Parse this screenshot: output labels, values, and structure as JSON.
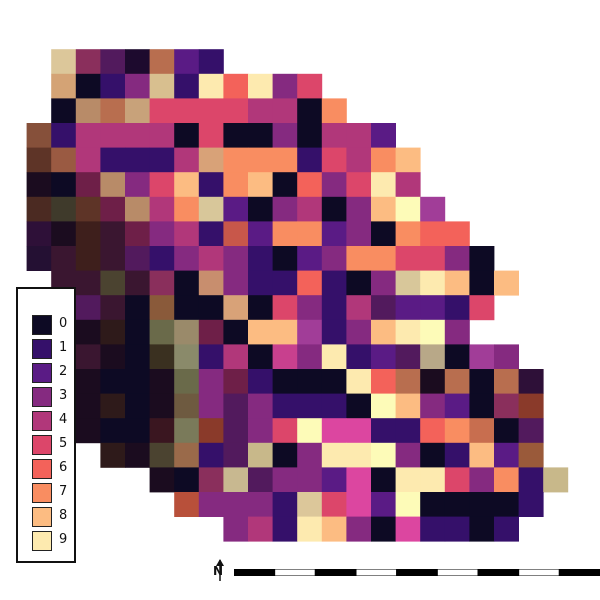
{
  "legend": {
    "classes": [
      {
        "value": "0",
        "color": "#0d0a24"
      },
      {
        "value": "1",
        "color": "#35106a"
      },
      {
        "value": "2",
        "color": "#5a1b85"
      },
      {
        "value": "3",
        "color": "#852a80"
      },
      {
        "value": "4",
        "color": "#b1377a"
      },
      {
        "value": "5",
        "color": "#dc466a"
      },
      {
        "value": "6",
        "color": "#f3625a"
      },
      {
        "value": "7",
        "color": "#f98d61"
      },
      {
        "value": "8",
        "color": "#fcbc82"
      },
      {
        "value": "9",
        "color": "#fdeaaf"
      }
    ]
  },
  "north_arrow": {
    "label": "N"
  },
  "raster": {
    "rows": [
      [
        0,
        0,
        0,
        0,
        0,
        0,
        0,
        0,
        0,
        0,
        0,
        0,
        0,
        0,
        0,
        0,
        0,
        0,
        0,
        0,
        0,
        0,
        0,
        0
      ],
      [
        0,
        0,
        0,
        0,
        0,
        0,
        0,
        0,
        0,
        0,
        0,
        0,
        0,
        0,
        0,
        0,
        0,
        0,
        0,
        0,
        0,
        0,
        0,
        0
      ],
      [
        0,
        0,
        "#dcc79a",
        "#8a2f5c",
        "#521a5d",
        "#1d0a2e",
        "#b86e4f",
        "#5a1b85",
        "#35106a",
        0,
        0,
        0,
        0,
        0,
        0,
        0,
        0,
        0,
        0,
        0,
        0,
        0,
        0,
        0
      ],
      [
        0,
        0,
        "#d4a375",
        "#0d0a24",
        "#35106a",
        "#852a80",
        "#d8bf8f",
        "#35106a",
        "#fdeaaf",
        "#f3625a",
        "#fdeaaf",
        "#852a80",
        "#dc466a",
        0,
        0,
        0,
        0,
        0,
        0,
        0,
        0,
        0,
        0,
        0
      ],
      [
        0,
        0,
        "#0d0a24",
        "#b88b68",
        "#b86e4f",
        "#c8a27a",
        "#dc466a",
        "#dc466a",
        "#dc466a",
        "#dc466a",
        "#b1377a",
        "#b1377a",
        "#0d0a24",
        "#f98d61",
        0,
        0,
        0,
        0,
        0,
        0,
        0,
        0,
        0,
        0
      ],
      [
        0,
        "#86503a",
        "#35106a",
        "#b1377a",
        "#b1377a",
        "#b1377a",
        "#b1377a",
        "#0d0a24",
        "#dc466a",
        "#0d0a24",
        "#0d0a24",
        "#852a80",
        "#0d0a24",
        "#b1377a",
        "#b1377a",
        "#5a1b85",
        0,
        0,
        0,
        0,
        0,
        0,
        0,
        0
      ],
      [
        0,
        "#5e3427",
        "#9a5a42",
        "#b1377a",
        "#35106a",
        "#35106a",
        "#35106a",
        "#b1377a",
        "#d8a278",
        "#f98d61",
        "#f98d61",
        "#f98d61",
        "#35106a",
        "#dc466a",
        "#b1377a",
        "#f98d61",
        "#fcbc82",
        0,
        0,
        0,
        0,
        0,
        0,
        0
      ],
      [
        0,
        "#1b0c1f",
        "#0d0a24",
        "#6e1f48",
        "#b88b68",
        "#852a80",
        "#dc466a",
        "#fcbc82",
        "#35106a",
        "#f98d61",
        "#fcbc82",
        "#0d0a24",
        "#f3625a",
        "#852a80",
        "#dc466a",
        "#fdeaaf",
        "#b1377a",
        0,
        0,
        0,
        0,
        0,
        0,
        0
      ],
      [
        0,
        "#4b2a22",
        "#3f3a2b",
        "#5e3427",
        "#6e1f48",
        "#b88b68",
        "#b1377a",
        "#f98d61",
        "#d8c79a",
        "#5a1b85",
        "#0d0a24",
        "#852a80",
        "#b1377a",
        "#0d0a24",
        "#852a80",
        "#fcbc82",
        "#fdfbb8",
        "#a13d98",
        0,
        0,
        0,
        0,
        0,
        0
      ],
      [
        0,
        "#2e1038",
        "#1b0c1f",
        "#3e1f1c",
        "#3a1630",
        "#6e1f48",
        "#852a80",
        "#b1377a",
        "#35106a",
        "#c8574a",
        "#5a1b85",
        "#f98d61",
        "#f98d61",
        "#5a1b85",
        "#852a80",
        "#0d0a24",
        "#f98d61",
        "#f3625a",
        "#f3625a",
        0,
        0,
        0,
        0,
        0
      ],
      [
        0,
        "#241033",
        "#3a1630",
        "#3e1f1c",
        "#3a1630",
        "#521a5d",
        "#35106a",
        "#852a80",
        "#b1377a",
        "#852a80",
        "#35106a",
        "#0d0a24",
        "#5a1b85",
        "#852a80",
        "#f98d61",
        "#f98d61",
        "#dc466a",
        "#dc466a",
        "#852a80",
        "#0d0a24",
        0,
        0,
        0,
        0
      ],
      [
        0,
        0,
        "#3a1630",
        "#3a1630",
        "#4b4330",
        "#3a1630",
        "#8a2f5c",
        "#0d0a24",
        "#c88e6e",
        "#852a80",
        "#35106a",
        "#35106a",
        "#f3625a",
        "#35106a",
        "#0d0a24",
        "#852a80",
        "#d8c79a",
        "#fdeaaf",
        "#fcbc82",
        "#0d0a24",
        "#fcbc82",
        0,
        0,
        0
      ],
      [
        0,
        0,
        "#3a1630",
        "#521a5d",
        "#3a1630",
        "#0d0a24",
        "#8a5a3a",
        "#0d0a24",
        "#0d0a24",
        "#d8a278",
        "#0d0a24",
        "#dc466a",
        "#852a80",
        "#35106a",
        "#b1377a",
        "#521a5d",
        "#5a1b85",
        "#5a1b85",
        "#35106a",
        "#dc466a",
        0,
        0,
        0,
        0
      ],
      [
        0,
        0,
        "#521a5d",
        "#1b0c1f",
        "#2e1a1a",
        "#0d0a24",
        "#6a6a4a",
        "#9a8a6a",
        "#6e1f48",
        "#0d0a24",
        "#fcbc82",
        "#fcbc82",
        "#a13d98",
        "#35106a",
        "#852a80",
        "#fcbc82",
        "#fdeaaf",
        "#fdfbb8",
        "#852a80",
        0,
        0,
        0,
        0,
        0
      ],
      [
        0,
        0,
        "#521a5d",
        "#3a1630",
        "#1b0c1f",
        "#0d0a24",
        "#3a3020",
        "#8a8a6a",
        "#35106a",
        "#b1377a",
        "#0d0a24",
        "#c8408e",
        "#852a80",
        "#fdeaaf",
        "#35106a",
        "#5a1b85",
        "#521a5d",
        "#b8a888",
        "#0d0a24",
        "#a13d98",
        "#852a80",
        0,
        0,
        0
      ],
      [
        0,
        0,
        "#b8503a",
        "#1b0c1f",
        "#0d0a24",
        "#0d0a24",
        "#1b0c1f",
        "#6a6a4a",
        "#852a80",
        "#6e1f48",
        "#35106a",
        "#0d0a24",
        "#0d0a24",
        "#0d0a24",
        "#fdeaaf",
        "#f3625a",
        "#b86e4f",
        "#1b0c1f",
        "#b86e4f",
        "#0d0a24",
        "#b86e4f",
        "#2e1038",
        0,
        0
      ],
      [
        0,
        0,
        "#b8503a",
        "#1b0c1f",
        "#2e1a1a",
        "#0d0a24",
        "#1b0c1f",
        "#6e5a40",
        "#852a80",
        "#521a5d",
        "#852a80",
        "#35106a",
        "#35106a",
        "#35106a",
        "#0d0a24",
        "#fdfbb8",
        "#fcbc82",
        "#852a80",
        "#5a1b85",
        "#0d0a24",
        "#8a2f5c",
        "#8a3a2a",
        0,
        0
      ],
      [
        0,
        0,
        0,
        "#1b0c1f",
        "#0d0a24",
        "#0d0a24",
        "#3a1620",
        "#7a7a5a",
        "#8a3a2a",
        "#521a5d",
        "#852a80",
        "#dc466a",
        "#fdfbb8",
        "#dc46a0",
        "#dc46a0",
        "#35106a",
        "#35106a",
        "#f3625a",
        "#f98d61",
        "#c86e4f",
        "#0d0a24",
        "#521a5d",
        0,
        0
      ],
      [
        0,
        0,
        0,
        0,
        "#2e1a1a",
        "#1b0c1f",
        "#4b4330",
        "#9a6a4a",
        "#35106a",
        "#521a5d",
        "#c8b88a",
        "#0d0a24",
        "#852a80",
        "#fdeaaf",
        "#fdeaaf",
        "#fdfbb8",
        "#852a80",
        "#0d0a24",
        "#35106a",
        "#fcbc82",
        "#5a1b85",
        "#9a5a3a",
        0,
        0
      ],
      [
        0,
        0,
        0,
        0,
        0,
        0,
        "#1b0c1f",
        "#0d0a24",
        "#8a2f5c",
        "#c8b890",
        "#521a5d",
        "#852a80",
        "#852a80",
        "#5a1b85",
        "#dc46a0",
        "#0d0a24",
        "#fdeaaf",
        "#fdeaaf",
        "#dc466a",
        "#852a80",
        "#f98d61",
        "#35106a",
        "#c8b88a",
        0
      ],
      [
        0,
        0,
        0,
        0,
        0,
        0,
        0,
        "#b8503a",
        "#852a80",
        "#852a80",
        "#852a80",
        "#35106a",
        "#dcc79a",
        "#dc466a",
        "#dc46a0",
        "#5a1b85",
        "#fdfbb8",
        "#0d0a24",
        "#0d0a24",
        "#0d0a24",
        "#0d0a24",
        "#35106a",
        0,
        0
      ],
      [
        0,
        0,
        0,
        0,
        0,
        0,
        0,
        0,
        0,
        "#852a80",
        "#b1377a",
        "#35106a",
        "#fdeaaf",
        "#fcbc82",
        "#852a80",
        "#0d0a24",
        "#dc46a0",
        "#35106a",
        "#35106a",
        "#0d0a24",
        "#35106a",
        0,
        0,
        0
      ]
    ]
  }
}
